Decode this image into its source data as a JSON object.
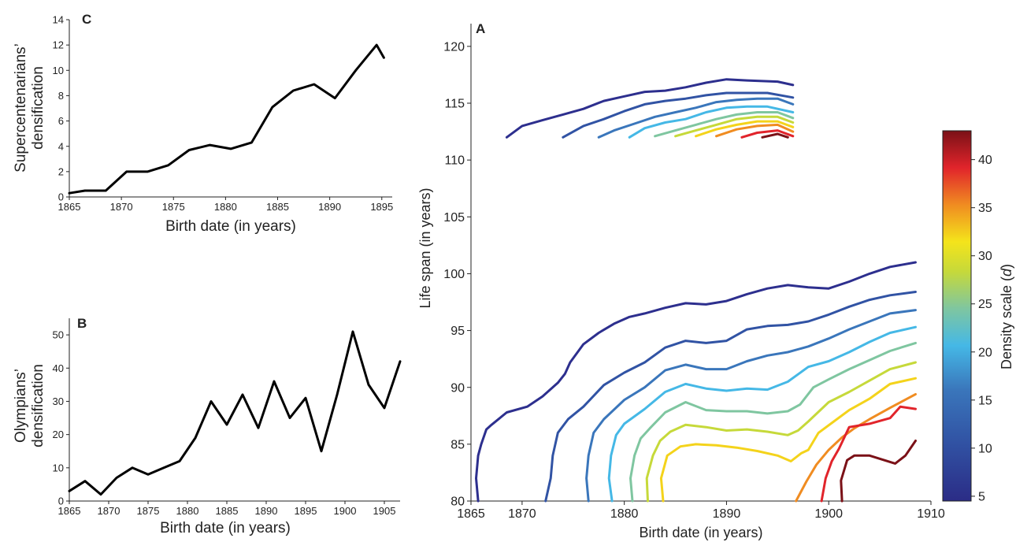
{
  "figure": {
    "panel_a_letter": "A",
    "panel_b_letter": "B",
    "panel_c_letter": "C"
  },
  "chart_data": [
    {
      "panel": "C",
      "type": "line",
      "xlabel": "Birth date (in years)",
      "ylabel_lines": [
        "Supercentenarians’",
        "densification"
      ],
      "xlim": [
        1865,
        1896
      ],
      "ylim": [
        0,
        14
      ],
      "xticks": [
        1865,
        1870,
        1875,
        1880,
        1885,
        1890,
        1895
      ],
      "yticks": [
        0,
        2,
        4,
        6,
        8,
        10,
        12,
        14
      ],
      "grid": false,
      "color": "#000000",
      "x": [
        1865,
        1866.5,
        1868.5,
        1870.5,
        1872.5,
        1874.5,
        1876.5,
        1878.5,
        1880.5,
        1882.5,
        1884.5,
        1886.5,
        1888.5,
        1890.5,
        1892.5,
        1894.5,
        1895.2
      ],
      "y": [
        0.3,
        0.5,
        0.5,
        2.0,
        2.0,
        2.5,
        3.7,
        4.1,
        3.8,
        4.3,
        7.1,
        8.4,
        8.9,
        7.8,
        10.0,
        12.0,
        11.0
      ]
    },
    {
      "panel": "B",
      "type": "line",
      "xlabel": "Birth date (in years)",
      "ylabel_lines": [
        "Olympians’",
        "densification"
      ],
      "xlim": [
        1865,
        1907
      ],
      "ylim": [
        0,
        55
      ],
      "xticks": [
        1865,
        1870,
        1875,
        1880,
        1885,
        1890,
        1895,
        1900,
        1905
      ],
      "yticks": [
        0,
        10,
        20,
        30,
        40,
        50
      ],
      "grid": false,
      "color": "#000000",
      "x": [
        1865,
        1867,
        1869,
        1871,
        1873,
        1875,
        1877,
        1879,
        1881,
        1883,
        1885,
        1887,
        1889,
        1891,
        1893,
        1895,
        1897,
        1899,
        1901,
        1903,
        1905,
        1907
      ],
      "y": [
        3,
        6,
        2,
        7,
        10,
        8,
        10,
        12,
        19,
        30,
        23,
        32,
        22,
        36,
        25,
        31,
        15,
        32,
        51,
        35,
        28,
        42
      ]
    },
    {
      "panel": "A",
      "type": "line",
      "xlabel": "Birth date (in years)",
      "ylabel": "Life span (in years)",
      "xlim": [
        1865,
        1910
      ],
      "ylim": [
        80,
        122
      ],
      "xticks": [
        1865,
        1870,
        1880,
        1890,
        1900,
        1910
      ],
      "yticks": [
        80,
        85,
        90,
        95,
        100,
        105,
        110,
        115,
        120
      ],
      "grid": false,
      "colorbar": {
        "label": "Density scale (",
        "label_var": "d",
        "label_end": ")",
        "min": 4.5,
        "max": 43,
        "ticks": [
          5,
          10,
          15,
          20,
          25,
          30,
          35,
          40
        ],
        "colormap": "jet"
      },
      "series": [
        {
          "level": 5,
          "color": "#2d2f8e",
          "x": [
            1868.5,
            1870,
            1872,
            1874,
            1876,
            1878,
            1880,
            1882,
            1884,
            1886,
            1888,
            1890,
            1892,
            1895,
            1896.5
          ],
          "y": [
            112,
            113,
            113.5,
            114,
            114.5,
            115.2,
            115.6,
            116,
            116.1,
            116.4,
            116.8,
            117.1,
            117,
            116.9,
            116.6
          ]
        },
        {
          "level": 10,
          "color": "#3153a4",
          "x": [
            1874,
            1876,
            1878,
            1880,
            1882,
            1884,
            1886,
            1888,
            1890,
            1892,
            1894,
            1896.5
          ],
          "y": [
            112,
            113,
            113.6,
            114.3,
            114.9,
            115.2,
            115.4,
            115.7,
            115.9,
            115.9,
            115.9,
            115.5
          ]
        },
        {
          "level": 15,
          "color": "#3a76bb",
          "x": [
            1877.5,
            1879,
            1881,
            1883,
            1885,
            1887,
            1889,
            1891,
            1893,
            1895,
            1896.5
          ],
          "y": [
            112,
            112.6,
            113.2,
            113.8,
            114.2,
            114.6,
            115.1,
            115.3,
            115.4,
            115.4,
            114.9
          ]
        },
        {
          "level": 17.5,
          "color": "#45b8e6",
          "x": [
            1880.5,
            1882,
            1884,
            1886,
            1888,
            1890,
            1892,
            1894,
            1896.5
          ],
          "y": [
            112,
            112.8,
            113.3,
            113.6,
            114.2,
            114.6,
            114.7,
            114.7,
            114.2
          ]
        },
        {
          "level": 20,
          "color": "#7fc6a0",
          "x": [
            1883,
            1885,
            1887,
            1889,
            1891,
            1893,
            1895,
            1896.5
          ],
          "y": [
            112.1,
            112.6,
            113.1,
            113.6,
            114,
            114.2,
            114.2,
            113.7
          ]
        },
        {
          "level": 25,
          "color": "#c6d93a",
          "x": [
            1885,
            1887,
            1889,
            1891,
            1893,
            1895,
            1896.5
          ],
          "y": [
            112.1,
            112.6,
            113.1,
            113.6,
            113.8,
            113.8,
            113.3
          ]
        },
        {
          "level": 30,
          "color": "#f4d31b",
          "x": [
            1887,
            1889,
            1891,
            1893,
            1895,
            1896.5
          ],
          "y": [
            112.1,
            112.7,
            113.1,
            113.4,
            113.4,
            112.9
          ]
        },
        {
          "level": 35,
          "color": "#f08c21",
          "x": [
            1889,
            1891,
            1893,
            1895,
            1896.5
          ],
          "y": [
            112.1,
            112.7,
            113,
            113.1,
            112.5
          ]
        },
        {
          "level": 40,
          "color": "#e1242b",
          "x": [
            1891.5,
            1893,
            1895,
            1896.5
          ],
          "y": [
            112,
            112.4,
            112.6,
            112.1
          ]
        },
        {
          "level": 43,
          "color": "#7b1117",
          "x": [
            1893.5,
            1895,
            1896
          ],
          "y": [
            112,
            112.3,
            112
          ]
        },
        {
          "level": 5,
          "color": "#2d2f8e",
          "x": [
            1865.7,
            1865.5,
            1865.7,
            1866,
            1866.5,
            1867,
            1868.5,
            1870.5,
            1872,
            1873.5,
            1874.2,
            1874.7,
            1876,
            1877.5,
            1879,
            1880.5,
            1882,
            1884,
            1886,
            1888,
            1890,
            1892,
            1894,
            1896,
            1898,
            1900,
            1902,
            1904,
            1906,
            1908.5
          ],
          "y": [
            80,
            82,
            84,
            85,
            86.3,
            86.7,
            87.8,
            88.3,
            89.2,
            90.4,
            91.2,
            92.2,
            93.8,
            94.8,
            95.6,
            96.2,
            96.5,
            97,
            97.4,
            97.3,
            97.6,
            98.2,
            98.7,
            99,
            98.8,
            98.7,
            99.3,
            100,
            100.6,
            101
          ]
        },
        {
          "level": 10,
          "color": "#3153a4",
          "x": [
            1872.3,
            1872.8,
            1873,
            1873.5,
            1874.5,
            1876,
            1878,
            1880,
            1882,
            1884,
            1886,
            1888,
            1890,
            1892,
            1894,
            1896,
            1898,
            1900,
            1902,
            1904,
            1906,
            1908.5
          ],
          "y": [
            80,
            82,
            84,
            86,
            87.2,
            88.3,
            90.2,
            91.3,
            92.2,
            93.5,
            94.1,
            93.9,
            94.1,
            95.1,
            95.4,
            95.5,
            95.8,
            96.4,
            97.1,
            97.7,
            98.1,
            98.4
          ]
        },
        {
          "level": 15,
          "color": "#3a76bb",
          "x": [
            1876.5,
            1876.3,
            1876.5,
            1877,
            1878,
            1880,
            1882,
            1884,
            1886,
            1888,
            1890,
            1892,
            1894,
            1896,
            1898,
            1900,
            1902,
            1904,
            1906,
            1908.5
          ],
          "y": [
            80,
            82,
            84,
            86,
            87.2,
            88.9,
            90,
            91.5,
            92,
            91.6,
            91.6,
            92.3,
            92.8,
            93.1,
            93.6,
            94.3,
            95.1,
            95.8,
            96.5,
            96.8
          ]
        },
        {
          "level": 17.5,
          "color": "#45b8e6",
          "x": [
            1878.8,
            1878.5,
            1878.7,
            1879.2,
            1880,
            1882,
            1884,
            1886,
            1888,
            1890,
            1892,
            1894,
            1896,
            1898,
            1900,
            1902,
            1904,
            1906,
            1908.5
          ],
          "y": [
            80,
            82,
            84,
            85.8,
            86.8,
            88.1,
            89.6,
            90.3,
            89.9,
            89.7,
            89.9,
            89.8,
            90.5,
            91.8,
            92.3,
            93.1,
            94,
            94.8,
            95.3
          ]
        },
        {
          "level": 20,
          "color": "#7fc6a0",
          "x": [
            1880.8,
            1880.6,
            1881,
            1881.6,
            1882.5,
            1884,
            1886,
            1888,
            1890,
            1892,
            1894,
            1896,
            1897.2,
            1898.5,
            1900,
            1902,
            1904,
            1906,
            1908.5
          ],
          "y": [
            80,
            82,
            84,
            85.5,
            86.4,
            87.8,
            88.7,
            88,
            87.9,
            87.9,
            87.7,
            87.9,
            88.5,
            90,
            90.7,
            91.6,
            92.4,
            93.2,
            93.9
          ]
        },
        {
          "level": 25,
          "color": "#c6d93a",
          "x": [
            1882.3,
            1882.2,
            1882.8,
            1883.5,
            1884.5,
            1886,
            1888,
            1890,
            1892,
            1894,
            1896,
            1897,
            1898,
            1900,
            1902,
            1904,
            1906,
            1908.5
          ],
          "y": [
            80,
            82,
            84,
            85.3,
            86.1,
            86.7,
            86.5,
            86.2,
            86.3,
            86.1,
            85.8,
            86.2,
            87,
            88.7,
            89.6,
            90.6,
            91.6,
            92.2
          ]
        },
        {
          "level": 30,
          "color": "#f4d31b",
          "x": [
            1883.8,
            1883.6,
            1884.2,
            1885.5,
            1887,
            1889,
            1891,
            1893,
            1895,
            1896.3,
            1897.3,
            1898,
            1899,
            1900.5,
            1902,
            1904,
            1906,
            1908.5
          ],
          "y": [
            80,
            82,
            84,
            84.8,
            85,
            84.9,
            84.7,
            84.4,
            84,
            83.5,
            84.2,
            84.5,
            86,
            87,
            88,
            89,
            90.3,
            90.8
          ]
        },
        {
          "level": 35,
          "color": "#f08c21",
          "x": [
            1896.8,
            1897.8,
            1898.8,
            1900,
            1901.3,
            1902.5,
            1904,
            1906,
            1908.5
          ],
          "y": [
            80,
            81.7,
            83.2,
            84.5,
            85.6,
            86.4,
            87.2,
            88.2,
            89.4
          ]
        },
        {
          "level": 40,
          "color": "#e1242b",
          "x": [
            1899.3,
            1899.7,
            1900.3,
            1901,
            1902,
            1904,
            1906,
            1907,
            1908.5
          ],
          "y": [
            80,
            82,
            83.5,
            84.6,
            86.5,
            86.8,
            87.3,
            88.3,
            88.1
          ]
        },
        {
          "level": 43,
          "color": "#7b1117",
          "x": [
            1901.3,
            1901.2,
            1901.8,
            1902.5,
            1904,
            1906.5,
            1907.5,
            1908.5
          ],
          "y": [
            80,
            81.8,
            83.6,
            84,
            84,
            83.3,
            84,
            85.3
          ]
        }
      ]
    }
  ]
}
